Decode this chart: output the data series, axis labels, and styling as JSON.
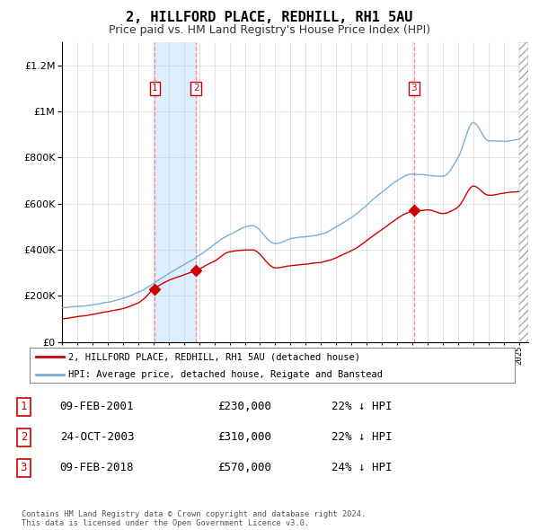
{
  "title": "2, HILLFORD PLACE, REDHILL, RH1 5AU",
  "subtitle": "Price paid vs. HM Land Registry's House Price Index (HPI)",
  "title_fontsize": 11,
  "subtitle_fontsize": 9,
  "red_line_label": "2, HILLFORD PLACE, REDHILL, RH1 5AU (detached house)",
  "blue_line_label": "HPI: Average price, detached house, Reigate and Banstead",
  "footer": "Contains HM Land Registry data © Crown copyright and database right 2024.\nThis data is licensed under the Open Government Licence v3.0.",
  "transactions": [
    {
      "num": 1,
      "date": "09-FEB-2001",
      "price": 230000,
      "hpi_diff": "22% ↓ HPI",
      "x": 2001.1
    },
    {
      "num": 2,
      "date": "24-OCT-2003",
      "price": 310000,
      "hpi_diff": "22% ↓ HPI",
      "x": 2003.8
    },
    {
      "num": 3,
      "date": "09-FEB-2018",
      "price": 570000,
      "hpi_diff": "24% ↓ HPI",
      "x": 2018.1
    }
  ],
  "red_color": "#cc0000",
  "blue_color": "#7aaed6",
  "vspan_color": "#ddeeff",
  "grid_color": "#cccccc",
  "ylim": [
    0,
    1300000
  ],
  "xlim_start": 1995.0,
  "xlim_end": 2025.6,
  "hatch_start": 2025.0
}
